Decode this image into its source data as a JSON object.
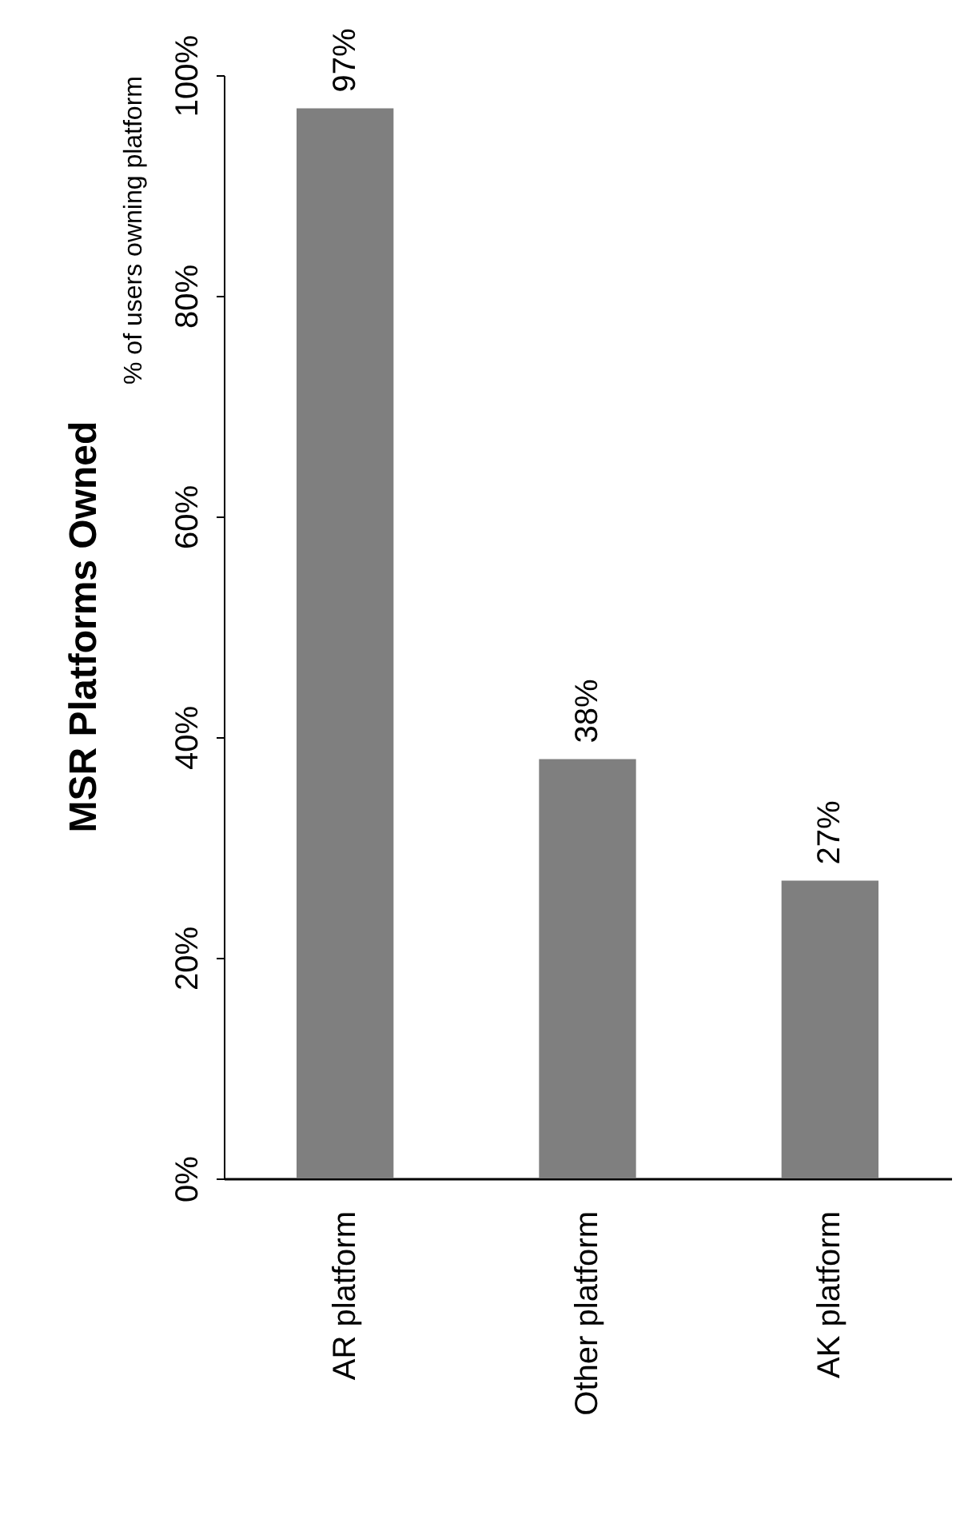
{
  "chart_data": {
    "type": "bar",
    "title": "MSR Platforms Owned",
    "ylabel": "% of users owning platform",
    "categories": [
      "AR platform",
      "Other platform",
      "AK platform"
    ],
    "values": [
      97,
      38,
      27
    ],
    "color": "#7f7f7f",
    "ylim": [
      0,
      100
    ],
    "yticks": [
      {
        "value": 0,
        "label": "0%"
      },
      {
        "value": 20,
        "label": "20%"
      },
      {
        "value": 40,
        "label": "40%"
      },
      {
        "value": 60,
        "label": "60%"
      },
      {
        "value": 80,
        "label": "80%"
      },
      {
        "value": 100,
        "label": "100%"
      }
    ],
    "value_labels": [
      "97%",
      "38%",
      "27%"
    ],
    "grid": false
  }
}
